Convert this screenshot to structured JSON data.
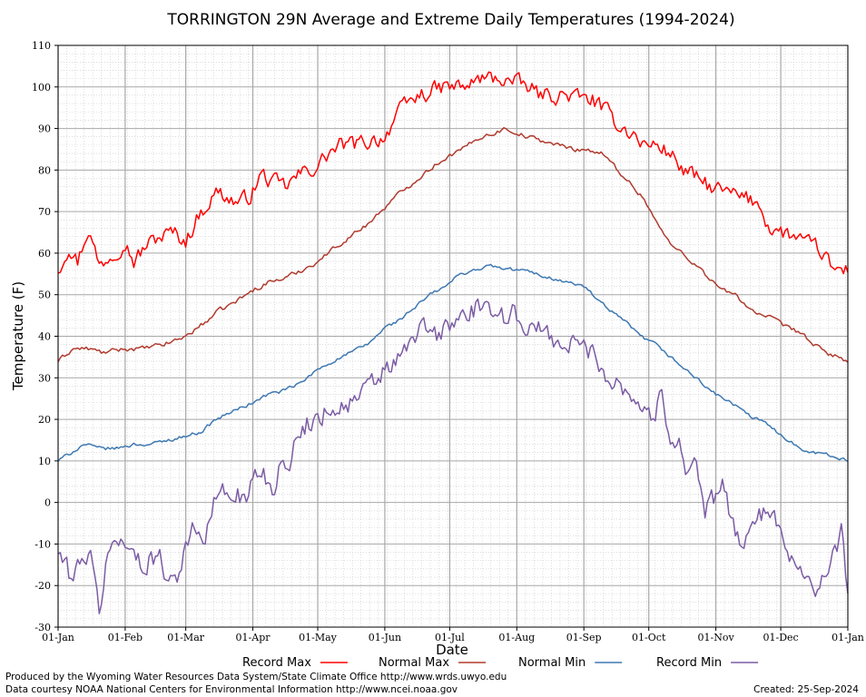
{
  "chart_data": {
    "type": "line",
    "title": "TORRINGTON 29N Average and Extreme Daily Temperatures (1994-2024)",
    "xlabel": "Date",
    "ylabel": "Temperature (F)",
    "ylim": [
      -30,
      110
    ],
    "yticks": [
      "110",
      "100",
      "90",
      "80",
      "70",
      "60",
      "50",
      "40",
      "30",
      "20",
      "10",
      "0",
      "-10",
      "-20",
      "-30"
    ],
    "xticks": [
      "01-Jan",
      "01-Feb",
      "01-Mar",
      "01-Apr",
      "01-May",
      "01-Jun",
      "01-Jul",
      "01-Aug",
      "01-Sep",
      "01-Oct",
      "01-Nov",
      "01-Dec",
      "01-Jan"
    ],
    "xtick_days": [
      1,
      32,
      60,
      91,
      121,
      152,
      182,
      213,
      244,
      274,
      305,
      335,
      366
    ],
    "grid": true,
    "legend_position": "bottom",
    "x_units": "day of year",
    "series": [
      {
        "name": "Record Max",
        "color": "#ff0000",
        "points": [
          [
            1,
            56
          ],
          [
            6,
            62
          ],
          [
            10,
            58
          ],
          [
            15,
            66
          ],
          [
            20,
            57
          ],
          [
            26,
            60
          ],
          [
            32,
            63
          ],
          [
            36,
            58
          ],
          [
            42,
            62
          ],
          [
            48,
            64
          ],
          [
            54,
            65
          ],
          [
            60,
            63
          ],
          [
            66,
            69
          ],
          [
            70,
            72
          ],
          [
            75,
            75
          ],
          [
            80,
            73
          ],
          [
            85,
            72
          ],
          [
            90,
            74
          ],
          [
            95,
            79
          ],
          [
            100,
            77
          ],
          [
            106,
            76
          ],
          [
            113,
            79
          ],
          [
            121,
            81
          ],
          [
            126,
            84
          ],
          [
            132,
            86
          ],
          [
            138,
            86
          ],
          [
            145,
            87
          ],
          [
            152,
            88
          ],
          [
            157,
            93
          ],
          [
            163,
            96
          ],
          [
            168,
            98
          ],
          [
            174,
            99
          ],
          [
            180,
            100
          ],
          [
            186,
            100
          ],
          [
            190,
            100
          ],
          [
            196,
            102
          ],
          [
            201,
            102
          ],
          [
            207,
            102
          ],
          [
            212,
            101
          ],
          [
            218,
            100
          ],
          [
            224,
            98
          ],
          [
            230,
            98
          ],
          [
            237,
            98
          ],
          [
            244,
            97
          ],
          [
            248,
            97
          ],
          [
            254,
            94
          ],
          [
            260,
            91
          ],
          [
            266,
            89
          ],
          [
            272,
            86
          ],
          [
            278,
            86
          ],
          [
            284,
            84
          ],
          [
            290,
            80
          ],
          [
            296,
            78
          ],
          [
            302,
            76
          ],
          [
            307,
            75
          ],
          [
            313,
            74
          ],
          [
            319,
            73
          ],
          [
            325,
            72
          ],
          [
            330,
            66
          ],
          [
            335,
            65
          ],
          [
            341,
            64
          ],
          [
            347,
            62
          ],
          [
            353,
            61
          ],
          [
            359,
            56
          ],
          [
            366,
            56
          ]
        ]
      },
      {
        "name": "Normal Max",
        "color": "#b03a2e",
        "points": [
          [
            1,
            34
          ],
          [
            8,
            37
          ],
          [
            15,
            37
          ],
          [
            22,
            36
          ],
          [
            32,
            37
          ],
          [
            40,
            37
          ],
          [
            50,
            38
          ],
          [
            60,
            40
          ],
          [
            68,
            43
          ],
          [
            75,
            46
          ],
          [
            82,
            48
          ],
          [
            91,
            51
          ],
          [
            98,
            53
          ],
          [
            106,
            54
          ],
          [
            114,
            56
          ],
          [
            121,
            58
          ],
          [
            128,
            61
          ],
          [
            136,
            64
          ],
          [
            144,
            67
          ],
          [
            152,
            71
          ],
          [
            158,
            74
          ],
          [
            165,
            77
          ],
          [
            172,
            80
          ],
          [
            180,
            83
          ],
          [
            188,
            85
          ],
          [
            196,
            88
          ],
          [
            203,
            89
          ],
          [
            208,
            90
          ],
          [
            213,
            89
          ],
          [
            218,
            88
          ],
          [
            225,
            87
          ],
          [
            232,
            86
          ],
          [
            240,
            85
          ],
          [
            245,
            85
          ],
          [
            252,
            84
          ],
          [
            258,
            81
          ],
          [
            265,
            77
          ],
          [
            272,
            73
          ],
          [
            278,
            67
          ],
          [
            284,
            62
          ],
          [
            290,
            60
          ],
          [
            296,
            57
          ],
          [
            302,
            54
          ],
          [
            308,
            51
          ],
          [
            314,
            50
          ],
          [
            320,
            47
          ],
          [
            326,
            45
          ],
          [
            332,
            44
          ],
          [
            338,
            42
          ],
          [
            344,
            41
          ],
          [
            350,
            38
          ],
          [
            356,
            36
          ],
          [
            362,
            35
          ],
          [
            366,
            34
          ]
        ]
      },
      {
        "name": "Normal Min",
        "color": "#3e78b2",
        "points": [
          [
            1,
            10
          ],
          [
            7,
            12
          ],
          [
            13,
            14
          ],
          [
            20,
            13
          ],
          [
            28,
            13
          ],
          [
            36,
            14
          ],
          [
            44,
            14
          ],
          [
            52,
            15
          ],
          [
            60,
            16
          ],
          [
            67,
            17
          ],
          [
            74,
            20
          ],
          [
            82,
            22
          ],
          [
            91,
            24
          ],
          [
            98,
            26
          ],
          [
            106,
            27
          ],
          [
            114,
            29
          ],
          [
            121,
            32
          ],
          [
            128,
            34
          ],
          [
            136,
            36
          ],
          [
            144,
            38
          ],
          [
            152,
            42
          ],
          [
            159,
            44
          ],
          [
            166,
            47
          ],
          [
            173,
            50
          ],
          [
            180,
            52
          ],
          [
            187,
            55
          ],
          [
            194,
            56
          ],
          [
            201,
            57
          ],
          [
            208,
            56
          ],
          [
            215,
            56
          ],
          [
            222,
            55
          ],
          [
            229,
            54
          ],
          [
            236,
            53
          ],
          [
            244,
            52
          ],
          [
            250,
            49
          ],
          [
            256,
            46
          ],
          [
            262,
            44
          ],
          [
            270,
            40
          ],
          [
            277,
            38
          ],
          [
            284,
            35
          ],
          [
            291,
            32
          ],
          [
            298,
            29
          ],
          [
            305,
            26
          ],
          [
            312,
            24
          ],
          [
            320,
            21
          ],
          [
            328,
            19
          ],
          [
            336,
            16
          ],
          [
            344,
            13
          ],
          [
            352,
            12
          ],
          [
            360,
            11
          ],
          [
            366,
            10
          ]
        ]
      },
      {
        "name": "Record Min",
        "color": "#7b5ca4",
        "points": [
          [
            1,
            -12
          ],
          [
            4,
            -15
          ],
          [
            8,
            -19
          ],
          [
            12,
            -12
          ],
          [
            16,
            -14
          ],
          [
            20,
            -26
          ],
          [
            24,
            -12
          ],
          [
            28,
            -10
          ],
          [
            32,
            -8
          ],
          [
            36,
            -13
          ],
          [
            40,
            -16
          ],
          [
            44,
            -12
          ],
          [
            48,
            -14
          ],
          [
            52,
            -18
          ],
          [
            56,
            -17
          ],
          [
            60,
            -10
          ],
          [
            63,
            -7
          ],
          [
            66,
            -9
          ],
          [
            69,
            -8
          ],
          [
            72,
            -2
          ],
          [
            76,
            4
          ],
          [
            80,
            0
          ],
          [
            84,
            4
          ],
          [
            88,
            -1
          ],
          [
            92,
            8
          ],
          [
            96,
            7
          ],
          [
            100,
            3
          ],
          [
            104,
            10
          ],
          [
            108,
            11
          ],
          [
            112,
            15
          ],
          [
            116,
            19
          ],
          [
            120,
            20
          ],
          [
            124,
            22
          ],
          [
            128,
            23
          ],
          [
            132,
            23
          ],
          [
            136,
            24
          ],
          [
            140,
            25
          ],
          [
            144,
            27
          ],
          [
            148,
            29
          ],
          [
            152,
            32
          ],
          [
            156,
            33
          ],
          [
            160,
            35
          ],
          [
            164,
            38
          ],
          [
            168,
            42
          ],
          [
            172,
            41
          ],
          [
            176,
            40
          ],
          [
            180,
            42
          ],
          [
            184,
            43
          ],
          [
            188,
            45
          ],
          [
            192,
            46
          ],
          [
            196,
            47
          ],
          [
            200,
            44
          ],
          [
            204,
            48
          ],
          [
            208,
            44
          ],
          [
            212,
            46
          ],
          [
            216,
            43
          ],
          [
            220,
            42
          ],
          [
            224,
            41
          ],
          [
            228,
            40
          ],
          [
            232,
            39
          ],
          [
            236,
            37
          ],
          [
            240,
            39
          ],
          [
            244,
            37
          ],
          [
            248,
            36
          ],
          [
            252,
            33
          ],
          [
            256,
            30
          ],
          [
            260,
            29
          ],
          [
            264,
            27
          ],
          [
            268,
            25
          ],
          [
            272,
            22
          ],
          [
            276,
            21
          ],
          [
            280,
            25
          ],
          [
            284,
            17
          ],
          [
            288,
            14
          ],
          [
            292,
            8
          ],
          [
            296,
            10
          ],
          [
            300,
            -2
          ],
          [
            304,
            0
          ],
          [
            308,
            3
          ],
          [
            312,
            -3
          ],
          [
            316,
            -10
          ],
          [
            320,
            -6
          ],
          [
            324,
            -5
          ],
          [
            328,
            -2
          ],
          [
            332,
            -5
          ],
          [
            336,
            -8
          ],
          [
            340,
            -12
          ],
          [
            344,
            -16
          ],
          [
            348,
            -18
          ],
          [
            352,
            -20
          ],
          [
            356,
            -18
          ],
          [
            360,
            -13
          ],
          [
            363,
            -8
          ],
          [
            366,
            -21
          ]
        ]
      }
    ]
  },
  "legend": [
    {
      "label": "Record Max",
      "color": "#ff0000"
    },
    {
      "label": "Normal Max",
      "color": "#b03a2e"
    },
    {
      "label": "Normal Min",
      "color": "#3e78b2"
    },
    {
      "label": "Record Min",
      "color": "#7b5ca4"
    }
  ],
  "footer": {
    "produced_by": "Produced by the Wyoming Water Resources Data System/State Climate Office http://www.wrds.uwyo.edu",
    "data_courtesy": "Data courtesy NOAA National Centers for Environmental Information http://www.ncei.noaa.gov",
    "created": "Created:  25-Sep-2024"
  }
}
